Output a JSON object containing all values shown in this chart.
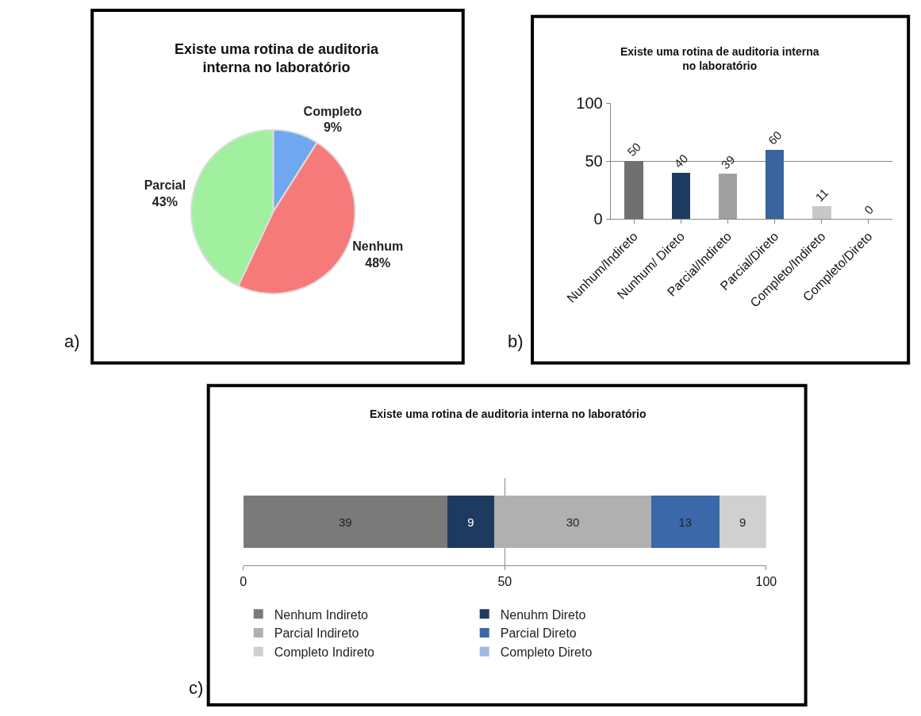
{
  "chart_data": [
    {
      "type": "pie",
      "title": "Existe uma rotina de auditoria interna no laboratório",
      "annotations": [
        "a)"
      ],
      "categories": [
        "Completo",
        "Nenhum",
        "Parcial"
      ],
      "values": [
        9,
        48,
        43
      ],
      "value_labels": [
        "9%",
        "48%",
        "43%"
      ],
      "colors": [
        "#6fa8f0",
        "#f77a7a",
        "#a0f0a0"
      ],
      "legend": false
    },
    {
      "type": "bar",
      "title": "Existe uma rotina de auditoria interna no laboratório",
      "annotations": [
        "b)"
      ],
      "categories": [
        "Nunhum/Indireto",
        "Nunhum/ Direto",
        "Parcial/Indireto",
        "Parcial/Direto",
        "Completo/Indireto",
        "Completo/Direto"
      ],
      "values": [
        50,
        40,
        39,
        60,
        11,
        0
      ],
      "colors": [
        "#707070",
        "#1f3a5f",
        "#a0a0a0",
        "#3a64a0",
        "#c8c8c8",
        "#8db3e2"
      ],
      "ylim": [
        0,
        100
      ],
      "yticks": [
        0,
        50,
        100
      ],
      "grid": "y",
      "data_labels": true,
      "legend": false
    },
    {
      "type": "bar",
      "orientation": "horizontal",
      "stacked": true,
      "title": "Existe uma rotina de auditoria interna no laboratório",
      "annotations": [
        "c)"
      ],
      "categories": [
        null
      ],
      "xlim": [
        0,
        100
      ],
      "xticks": [
        0,
        50,
        100
      ],
      "grid": "x",
      "tick_labels": "x",
      "legend": "bottom",
      "series": [
        {
          "name": "Nenhum Indireto",
          "color": "#7a7a7a",
          "values": [
            39
          ],
          "value_labels": [
            "39"
          ]
        },
        {
          "name": "Nenuhm Direto",
          "color": "#1f3a5f",
          "values": [
            9
          ],
          "value_labels": [
            "9"
          ]
        },
        {
          "name": "Parcial Indireto",
          "color": "#b0b0b0",
          "values": [
            30
          ],
          "value_labels": [
            "30"
          ]
        },
        {
          "name": "Parcial Direto",
          "color": "#3a68a8",
          "values": [
            13
          ],
          "value_labels": [
            "13"
          ]
        },
        {
          "name": "Completo Indireto",
          "color": "#d0d0d0",
          "values": [
            9
          ],
          "value_labels": [
            "9"
          ]
        },
        {
          "name": "Completo Direto",
          "color": "#9dbbe0",
          "values": [
            0
          ],
          "value_labels": [
            null
          ]
        }
      ]
    }
  ]
}
